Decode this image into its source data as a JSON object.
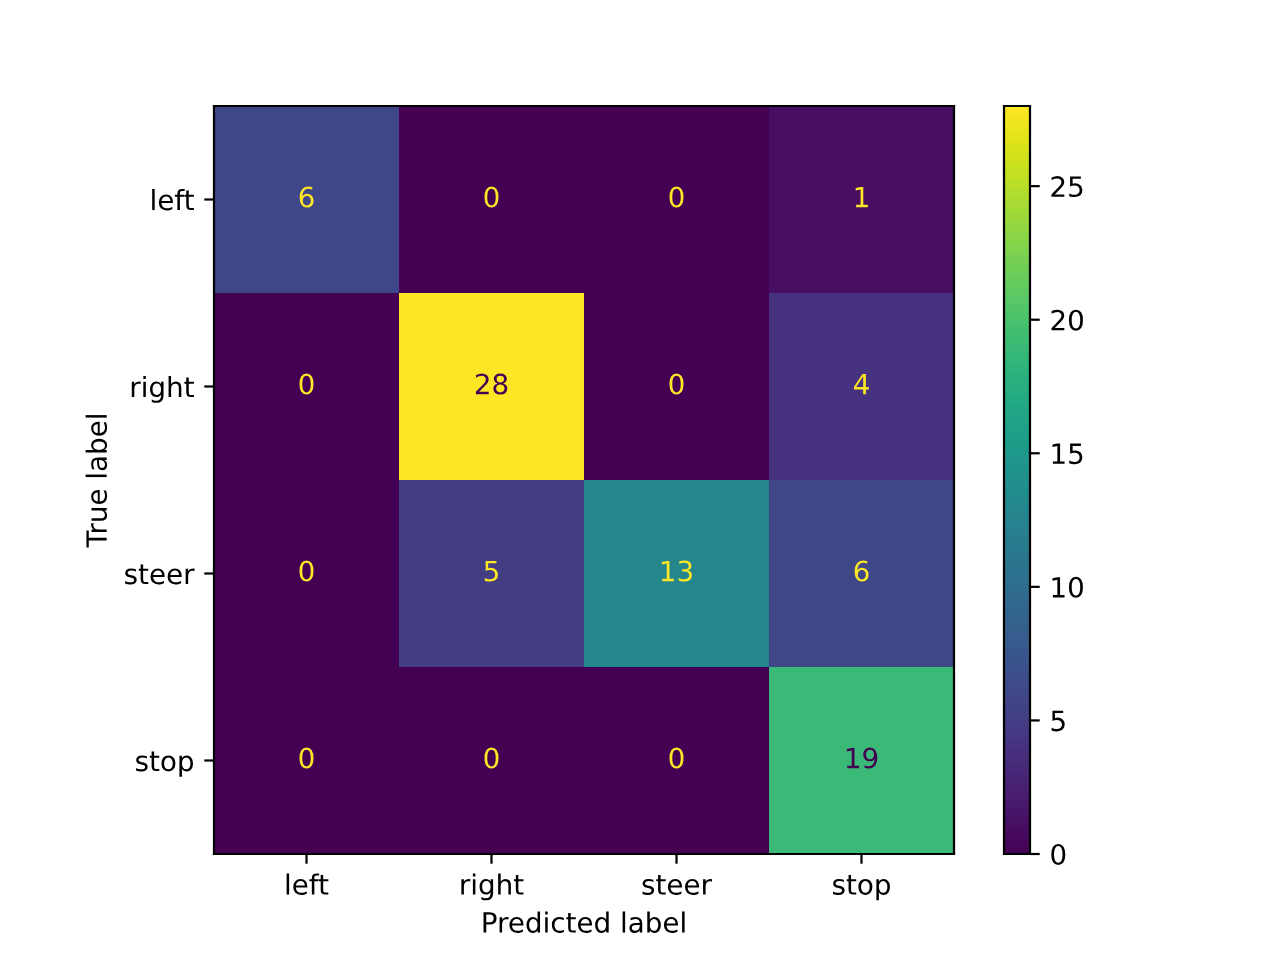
{
  "chart_data": {
    "type": "heatmap",
    "xlabel": "Predicted label",
    "ylabel": "True label",
    "categories": [
      "left",
      "right",
      "steer",
      "stop"
    ],
    "y_categories": [
      "left",
      "right",
      "steer",
      "stop"
    ],
    "cells": [
      [
        6,
        0,
        0,
        1
      ],
      [
        0,
        28,
        0,
        4
      ],
      [
        0,
        5,
        13,
        6
      ],
      [
        0,
        0,
        0,
        19
      ]
    ],
    "clim": [
      0,
      28
    ],
    "cticks": [
      0,
      5,
      10,
      15,
      20,
      25
    ],
    "data_labels": true
  }
}
